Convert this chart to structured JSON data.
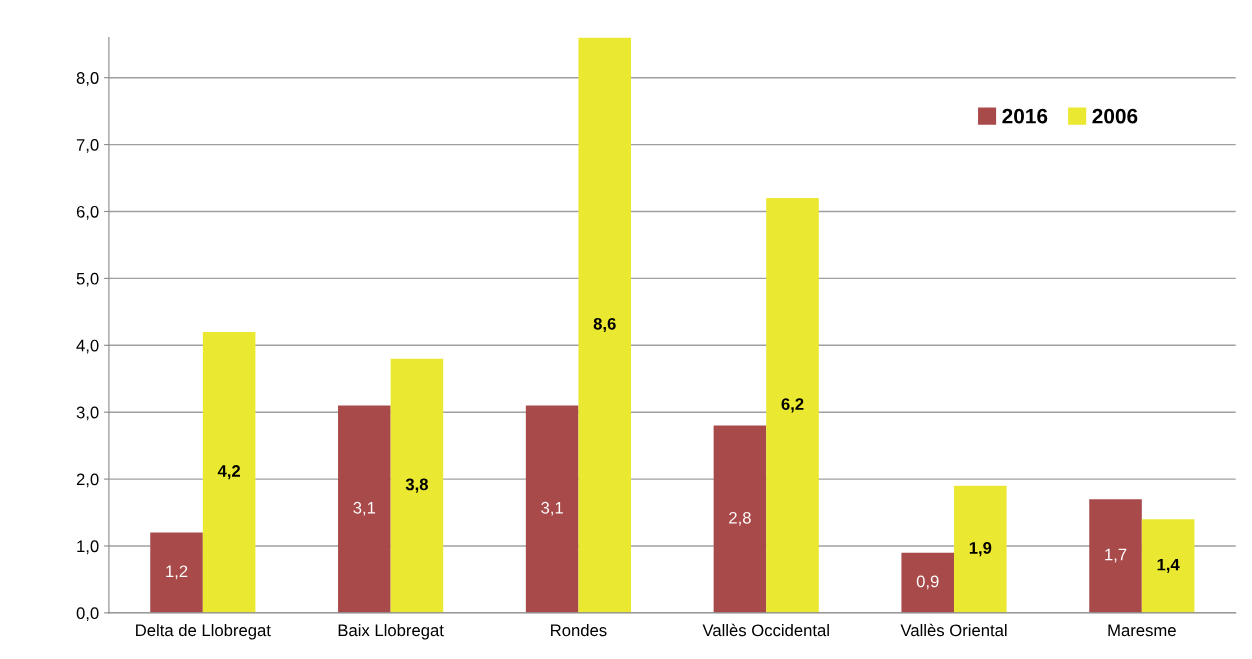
{
  "chart_data": {
    "type": "bar",
    "categories": [
      "Delta de Llobregat",
      "Baix Llobregat",
      "Rondes",
      "Vallès Occidental",
      "Vallès Oriental",
      "Maresme"
    ],
    "series": [
      {
        "name": "2016",
        "color": "#a94a4a",
        "values": [
          1.2,
          3.1,
          3.1,
          2.8,
          0.9,
          1.7
        ],
        "value_labels": [
          "1,2",
          "3,1",
          "3,1",
          "2,8",
          "0,9",
          "1,7"
        ]
      },
      {
        "name": "2006",
        "color": "#ebe832",
        "values": [
          4.2,
          3.8,
          8.6,
          6.2,
          1.9,
          1.4
        ],
        "value_labels": [
          "4,2",
          "3,8",
          "8,6",
          "6,2",
          "1,9",
          "1,4"
        ]
      }
    ],
    "ylim": [
      0,
      8.6
    ],
    "yticks": [
      {
        "value": 0,
        "label": "0,0"
      },
      {
        "value": 1,
        "label": "1,0"
      },
      {
        "value": 2,
        "label": "2,0"
      },
      {
        "value": 3,
        "label": "3,0"
      },
      {
        "value": 4,
        "label": "4,0"
      },
      {
        "value": 5,
        "label": "5,0"
      },
      {
        "value": 6,
        "label": "6,0"
      },
      {
        "value": 7,
        "label": "7,0"
      },
      {
        "value": 8,
        "label": "8,0"
      }
    ],
    "grid": "y",
    "legend": "top right"
  }
}
